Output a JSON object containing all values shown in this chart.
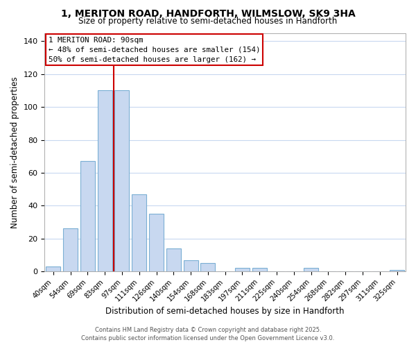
{
  "title_line1": "1, MERITON ROAD, HANDFORTH, WILMSLOW, SK9 3HA",
  "title_line2": "Size of property relative to semi-detached houses in Handforth",
  "xlabel": "Distribution of semi-detached houses by size in Handforth",
  "ylabel": "Number of semi-detached properties",
  "categories": [
    "40sqm",
    "54sqm",
    "69sqm",
    "83sqm",
    "97sqm",
    "111sqm",
    "126sqm",
    "140sqm",
    "154sqm",
    "168sqm",
    "183sqm",
    "197sqm",
    "211sqm",
    "225sqm",
    "240sqm",
    "254sqm",
    "268sqm",
    "282sqm",
    "297sqm",
    "311sqm",
    "325sqm"
  ],
  "values": [
    3,
    26,
    67,
    110,
    110,
    47,
    35,
    14,
    7,
    5,
    0,
    2,
    2,
    0,
    0,
    2,
    0,
    0,
    0,
    0,
    1
  ],
  "bar_color": "#c8d8f0",
  "bar_edge_color": "#7bafd4",
  "ylim": [
    0,
    145
  ],
  "yticks": [
    0,
    20,
    40,
    60,
    80,
    100,
    120,
    140
  ],
  "vline_x": 3.5,
  "annotation_title": "1 MERITON ROAD: 90sqm",
  "annotation_line1": "← 48% of semi-detached houses are smaller (154)",
  "annotation_line2": "50% of semi-detached houses are larger (162) →",
  "annotation_box_color": "#ffffff",
  "annotation_box_edge": "#cc0000",
  "vline_color": "#cc0000",
  "footer_line1": "Contains HM Land Registry data © Crown copyright and database right 2025.",
  "footer_line2": "Contains public sector information licensed under the Open Government Licence v3.0.",
  "background_color": "#ffffff",
  "grid_color": "#c8d8f0"
}
